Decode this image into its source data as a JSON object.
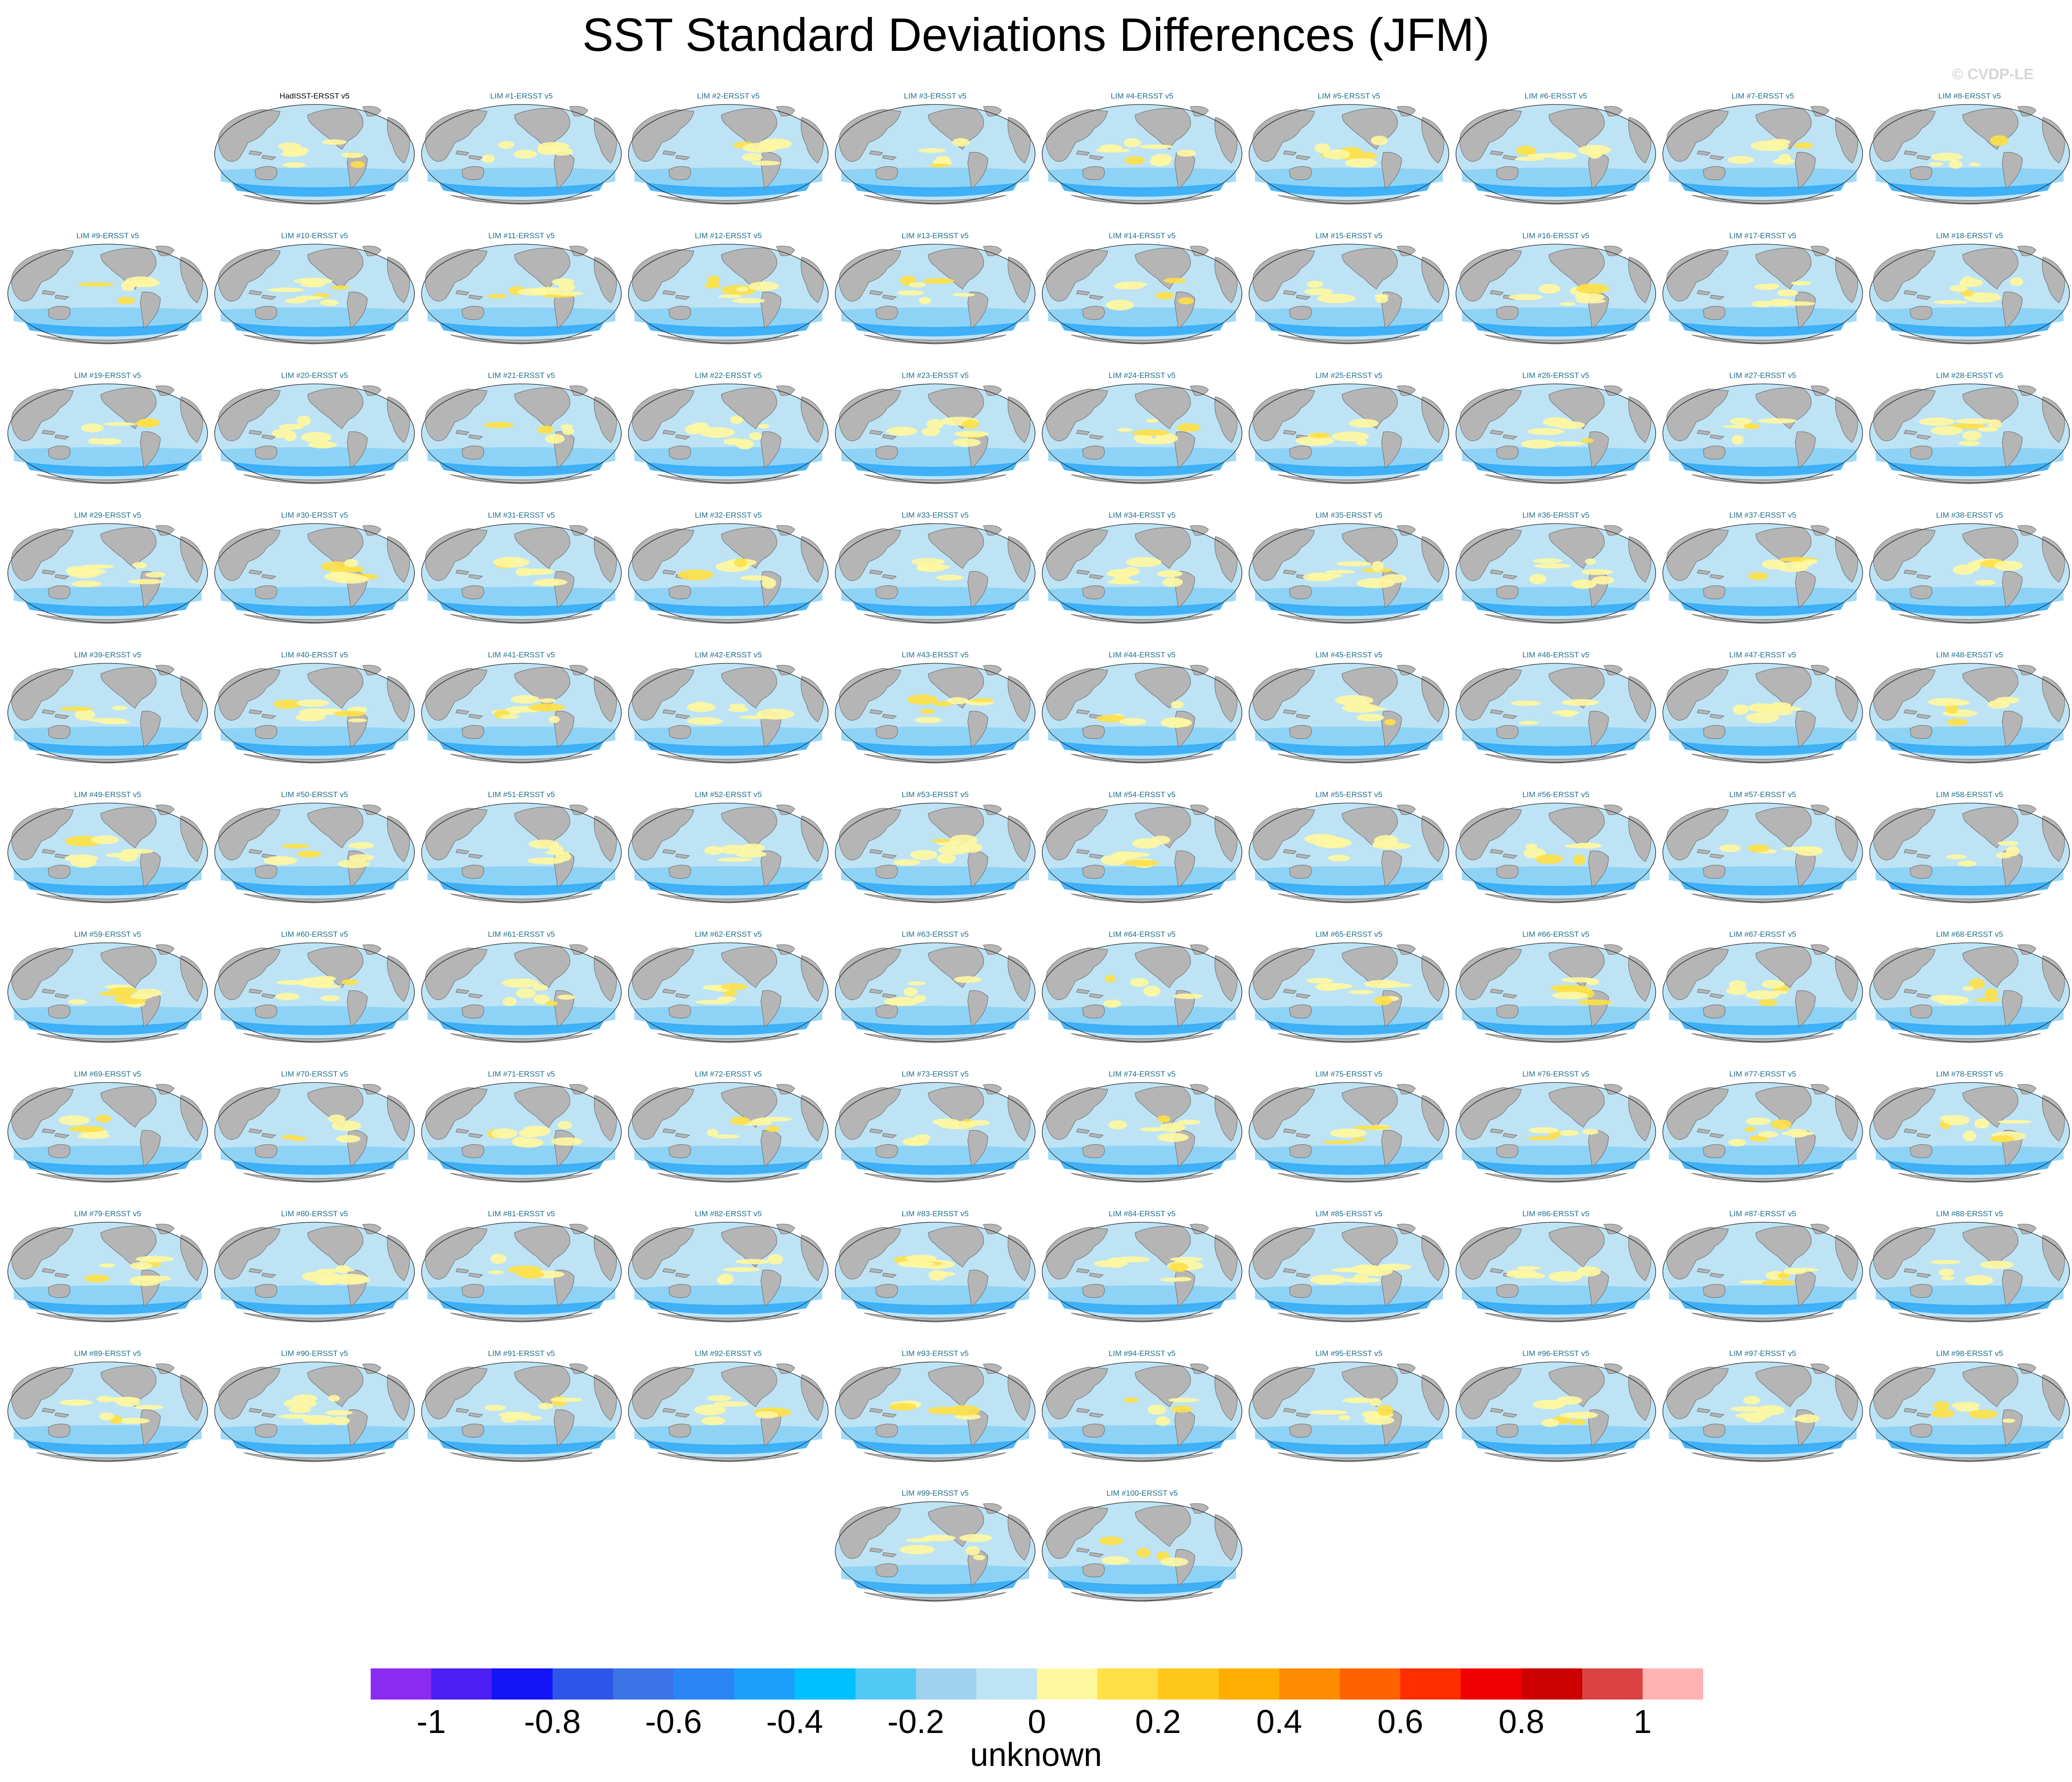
{
  "title": "SST Standard Deviations Differences (JFM)",
  "watermark": "© CVDP-LE",
  "colorbar": {
    "label": "unknown",
    "ticks": [
      "-1",
      "-0.8",
      "-0.6",
      "-0.4",
      "-0.2",
      "0",
      "0.2",
      "0.4",
      "0.6",
      "0.8",
      "1"
    ],
    "tick_values": [
      -1,
      -0.8,
      -0.6,
      -0.4,
      -0.2,
      0,
      0.2,
      0.4,
      0.6,
      0.8,
      1
    ],
    "colors": [
      "#8b2af0",
      "#4a1ef5",
      "#1414f7",
      "#2f55e8",
      "#3b74e6",
      "#2a85f5",
      "#1aa0fa",
      "#00c0ff",
      "#52c8f5",
      "#9ed2ee",
      "#bde3f5",
      "#fff7a0",
      "#ffe045",
      "#ffc71c",
      "#ffad00",
      "#ff8c00",
      "#ff6200",
      "#ff2d00",
      "#f00000",
      "#cc0000",
      "#db4343",
      "#ffb3b3"
    ]
  },
  "colors": {
    "land": "#b5b5b5",
    "ocean_neg": "#bde3f5",
    "ocean_pos": "#fff7a0",
    "panel_label_first": "#000000",
    "panel_label": "#1f6f8b"
  },
  "panels": [
    "HadISST-ERSST v5",
    "LIM #1-ERSST v5",
    "LIM #2-ERSST v5",
    "LIM #3-ERSST v5",
    "LIM #4-ERSST v5",
    "LIM #5-ERSST v5",
    "LIM #6-ERSST v5",
    "LIM #7-ERSST v5",
    "LIM #8-ERSST v5",
    "LIM #9-ERSST v5",
    "LIM #10-ERSST v5",
    "LIM #11-ERSST v5",
    "LIM #12-ERSST v5",
    "LIM #13-ERSST v5",
    "LIM #14-ERSST v5",
    "LIM #15-ERSST v5",
    "LIM #16-ERSST v5",
    "LIM #17-ERSST v5",
    "LIM #18-ERSST v5",
    "LIM #19-ERSST v5",
    "LIM #20-ERSST v5",
    "LIM #21-ERSST v5",
    "LIM #22-ERSST v5",
    "LIM #23-ERSST v5",
    "LIM #24-ERSST v5",
    "LIM #25-ERSST v5",
    "LIM #26-ERSST v5",
    "LIM #27-ERSST v5",
    "LIM #28-ERSST v5",
    "LIM #29-ERSST v5",
    "LIM #30-ERSST v5",
    "LIM #31-ERSST v5",
    "LIM #32-ERSST v5",
    "LIM #33-ERSST v5",
    "LIM #34-ERSST v5",
    "LIM #35-ERSST v5",
    "LIM #36-ERSST v5",
    "LIM #37-ERSST v5",
    "LIM #38-ERSST v5",
    "LIM #39-ERSST v5",
    "LIM #40-ERSST v5",
    "LIM #41-ERSST v5",
    "LIM #42-ERSST v5",
    "LIM #43-ERSST v5",
    "LIM #44-ERSST v5",
    "LIM #45-ERSST v5",
    "LIM #46-ERSST v5",
    "LIM #47-ERSST v5",
    "LIM #48-ERSST v5",
    "LIM #49-ERSST v5",
    "LIM #50-ERSST v5",
    "LIM #51-ERSST v5",
    "LIM #52-ERSST v5",
    "LIM #53-ERSST v5",
    "LIM #54-ERSST v5",
    "LIM #55-ERSST v5",
    "LIM #56-ERSST v5",
    "LIM #57-ERSST v5",
    "LIM #58-ERSST v5",
    "LIM #59-ERSST v5",
    "LIM #60-ERSST v5",
    "LIM #61-ERSST v5",
    "LIM #62-ERSST v5",
    "LIM #63-ERSST v5",
    "LIM #64-ERSST v5",
    "LIM #65-ERSST v5",
    "LIM #66-ERSST v5",
    "LIM #67-ERSST v5",
    "LIM #68-ERSST v5",
    "LIM #69-ERSST v5",
    "LIM #70-ERSST v5",
    "LIM #71-ERSST v5",
    "LIM #72-ERSST v5",
    "LIM #73-ERSST v5",
    "LIM #74-ERSST v5",
    "LIM #75-ERSST v5",
    "LIM #76-ERSST v5",
    "LIM #77-ERSST v5",
    "LIM #78-ERSST v5",
    "LIM #79-ERSST v5",
    "LIM #80-ERSST v5",
    "LIM #81-ERSST v5",
    "LIM #82-ERSST v5",
    "LIM #83-ERSST v5",
    "LIM #84-ERSST v5",
    "LIM #85-ERSST v5",
    "LIM #86-ERSST v5",
    "LIM #87-ERSST v5",
    "LIM #88-ERSST v5",
    "LIM #89-ERSST v5",
    "LIM #90-ERSST v5",
    "LIM #91-ERSST v5",
    "LIM #92-ERSST v5",
    "LIM #93-ERSST v5",
    "LIM #94-ERSST v5",
    "LIM #95-ERSST v5",
    "LIM #96-ERSST v5",
    "LIM #97-ERSST v5",
    "LIM #98-ERSST v5",
    "LIM #99-ERSST v5",
    "LIM #100-ERSST v5"
  ]
}
